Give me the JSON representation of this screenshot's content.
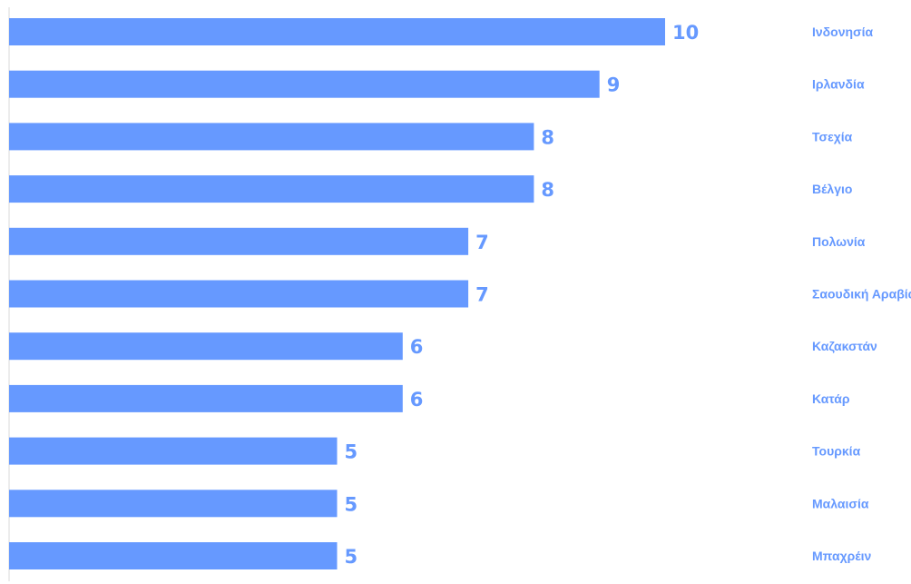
{
  "colors": {
    "bar": "#6699ff",
    "value_label": "#6699ff",
    "category_label": "#6699ff",
    "axis_line": "#d9d9d9"
  },
  "chart_data": {
    "type": "bar",
    "orientation": "horizontal",
    "categories": [
      "Ινδονησία",
      "Ιρλανδία",
      "Τσεχία",
      "Βέλγιο",
      "Πολωνία",
      "Σαουδική Αραβία",
      "Καζακστάν",
      "Κατάρ",
      "Τουρκία",
      "Μαλαισία",
      "Μπαχρέιν"
    ],
    "values": [
      10,
      9,
      8,
      8,
      7,
      7,
      6,
      6,
      5,
      5,
      5
    ],
    "xlim": [
      0,
      10
    ],
    "data_labels": true,
    "category_labels_position": "right",
    "grid": false,
    "legend": "none"
  }
}
